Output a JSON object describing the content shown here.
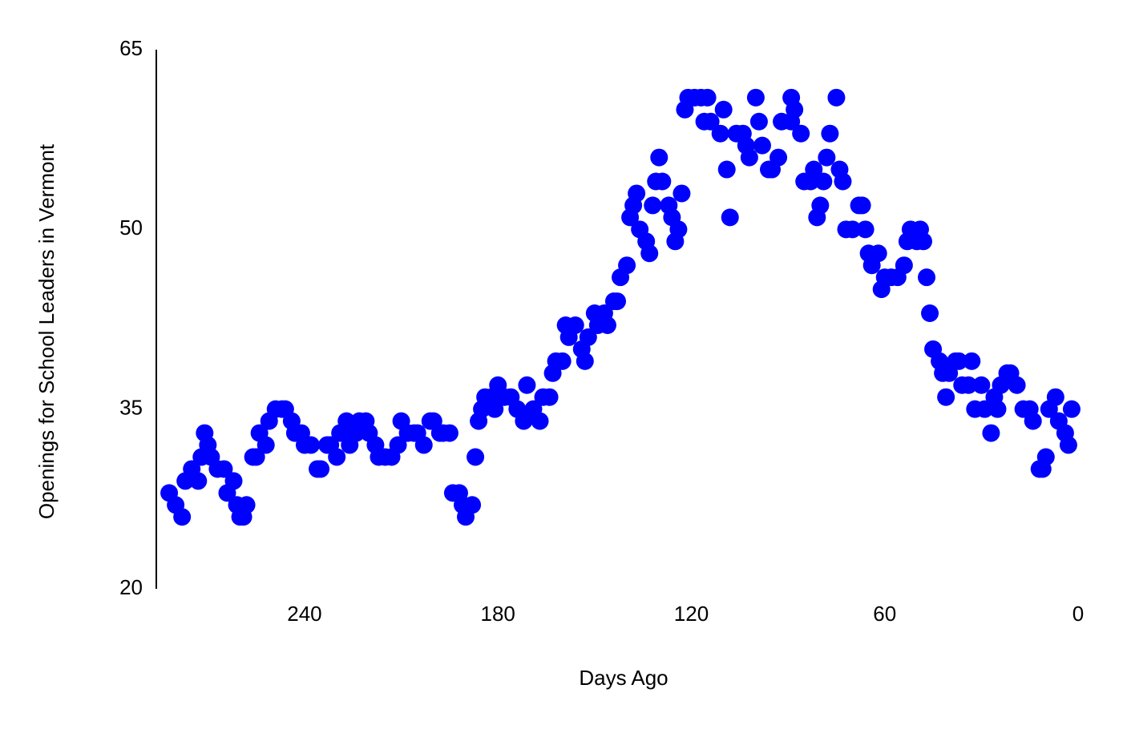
{
  "chart_data": {
    "type": "scatter",
    "x_label": "Days Ago",
    "y_label": "Openings for School Leaders in Vermont",
    "color": "#0000ff",
    "xlim": [
      286,
      0
    ],
    "xticks": [
      240,
      180,
      120,
      60,
      0
    ],
    "ylim": [
      20,
      65
    ],
    "yticks": [
      20,
      35,
      50,
      65
    ],
    "x": [
      282,
      280,
      278,
      277,
      275,
      273,
      272,
      271,
      270,
      269,
      267,
      265,
      264,
      262,
      261,
      260,
      259,
      258,
      256,
      255,
      254,
      252,
      251,
      249,
      247,
      246,
      244,
      243,
      241,
      240,
      238,
      236,
      235,
      233,
      232,
      230,
      229,
      227,
      226,
      224,
      223,
      221,
      220,
      218,
      217,
      215,
      213,
      211,
      210,
      208,
      206,
      205,
      203,
      201,
      200,
      198,
      197,
      195,
      194,
      192,
      191,
      190,
      188,
      187,
      186,
      185,
      184,
      182,
      181,
      180,
      178,
      176,
      174,
      172,
      171,
      169,
      167,
      166,
      164,
      163,
      162,
      160,
      159,
      158,
      156,
      154,
      153,
      152,
      150,
      149,
      147,
      146,
      144,
      143,
      142,
      140,
      139,
      138,
      137,
      136,
      134,
      133,
      132,
      131,
      130,
      129,
      127,
      126,
      125,
      124,
      123,
      122,
      121,
      119,
      117,
      116,
      115,
      114,
      111,
      110,
      109,
      108,
      106,
      104,
      103,
      102,
      100,
      99,
      98,
      96,
      95,
      93,
      92,
      89,
      89,
      88,
      86,
      85,
      83,
      82,
      81,
      80,
      79,
      78,
      77,
      75,
      74,
      73,
      72,
      70,
      68,
      67,
      66,
      65,
      64,
      62,
      61,
      60,
      58,
      56,
      54,
      53,
      52,
      50,
      49,
      48,
      47,
      46,
      45,
      43,
      42,
      41,
      40,
      38,
      37,
      36,
      34,
      33,
      32,
      30,
      29,
      27,
      26,
      25,
      24,
      22,
      21,
      19,
      17,
      15,
      14,
      12,
      11,
      10,
      9,
      7,
      6,
      4,
      3,
      2
    ],
    "y": [
      28,
      27,
      26,
      29,
      30,
      29,
      31,
      33,
      32,
      31,
      30,
      30,
      28,
      29,
      27,
      26,
      26,
      27,
      31,
      31,
      33,
      32,
      34,
      35,
      35,
      35,
      34,
      33,
      33,
      32,
      32,
      30,
      30,
      32,
      32,
      31,
      33,
      34,
      32,
      33,
      34,
      34,
      33,
      32,
      31,
      31,
      31,
      32,
      34,
      33,
      33,
      33,
      32,
      34,
      34,
      33,
      33,
      33,
      28,
      28,
      27,
      26,
      27,
      31,
      34,
      35,
      36,
      36,
      35,
      37,
      36,
      36,
      35,
      34,
      37,
      35,
      34,
      36,
      36,
      38,
      39,
      39,
      42,
      41,
      42,
      40,
      39,
      41,
      43,
      42,
      43,
      42,
      44,
      44,
      46,
      47,
      51,
      52,
      53,
      50,
      49,
      48,
      52,
      54,
      56,
      54,
      52,
      51,
      49,
      50,
      53,
      60,
      61,
      61,
      61,
      59,
      61,
      59,
      58,
      60,
      55,
      51,
      58,
      58,
      57,
      56,
      61,
      59,
      57,
      55,
      55,
      56,
      59,
      61,
      59,
      60,
      58,
      54,
      54,
      55,
      51,
      52,
      54,
      56,
      58,
      61,
      55,
      54,
      50,
      50,
      52,
      52,
      50,
      48,
      47,
      48,
      45,
      46,
      46,
      46,
      47,
      49,
      50,
      49,
      50,
      49,
      46,
      43,
      40,
      39,
      38,
      36,
      38,
      39,
      39,
      37,
      37,
      39,
      35,
      37,
      35,
      33,
      36,
      35,
      37,
      38,
      38,
      37,
      35,
      35,
      34,
      30,
      30,
      31,
      35,
      36,
      34,
      33,
      32,
      35
    ]
  }
}
